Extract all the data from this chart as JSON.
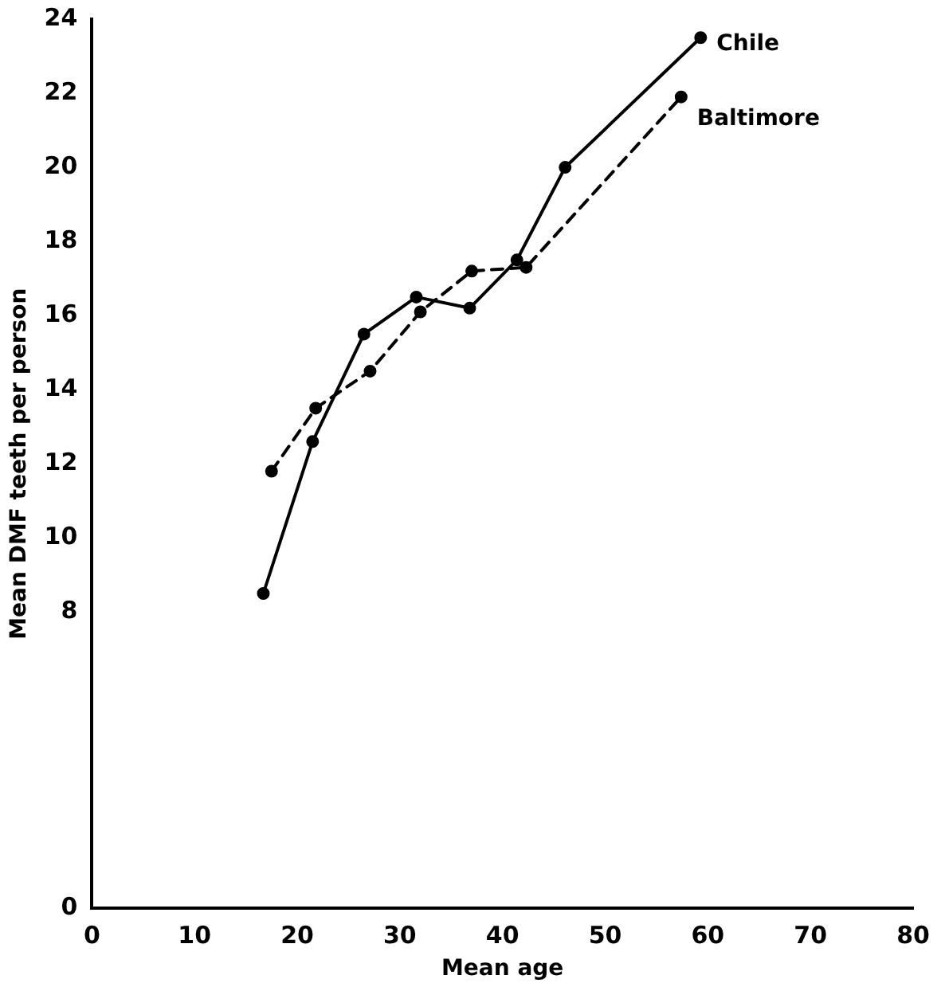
{
  "chart_data": {
    "type": "line",
    "xlabel": "Mean age",
    "ylabel": "Mean DMF teeth per person",
    "xlim": [
      0,
      80
    ],
    "xticks": [
      0,
      10,
      20,
      30,
      40,
      50,
      60,
      70,
      80
    ],
    "ylim": [
      0,
      24
    ],
    "yticks": [
      0,
      8,
      10,
      12,
      14,
      16,
      18,
      20,
      22,
      24
    ],
    "grid": false,
    "legend": false,
    "marker": "circle",
    "series": [
      {
        "name": "Chile",
        "color": "#000000",
        "line_style": "solid",
        "x": [
          16.7,
          21.5,
          26.5,
          31.6,
          36.8,
          41.4,
          46.1,
          59.3
        ],
        "values": [
          8.5,
          12.6,
          15.5,
          16.5,
          16.2,
          17.5,
          20.0,
          23.5
        ]
      },
      {
        "name": "Baltimore",
        "color": "#000000",
        "line_style": "dashed",
        "x": [
          17.5,
          21.8,
          27.1,
          32.0,
          37.0,
          42.3,
          57.4
        ],
        "values": [
          11.8,
          13.5,
          14.5,
          16.1,
          17.2,
          17.3,
          21.9
        ]
      }
    ]
  }
}
